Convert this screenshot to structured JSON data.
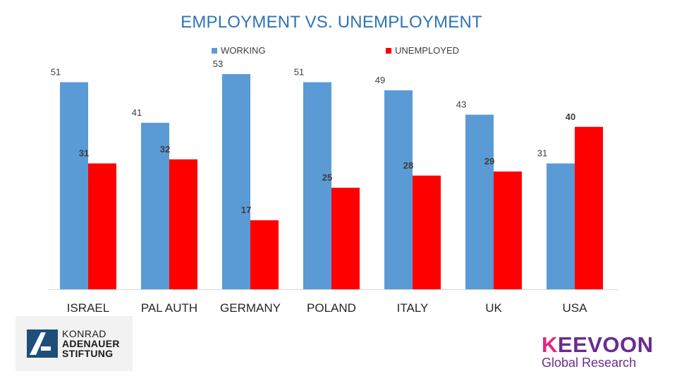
{
  "chart_data": {
    "type": "bar",
    "title": "EMPLOYMENT VS. UNEMPLOYMENT",
    "categories": [
      "ISRAEL",
      "PAL AUTH",
      "GERMANY",
      "POLAND",
      "ITALY",
      "UK",
      "USA"
    ],
    "series": [
      {
        "name": "WORKING",
        "values": [
          51,
          41,
          53,
          51,
          49,
          43,
          31
        ],
        "color": "#5b9bd5"
      },
      {
        "name": "UNEMPLOYED",
        "values": [
          31,
          32,
          17,
          25,
          28,
          29,
          40
        ],
        "color": "#ff0000"
      }
    ],
    "xlabel": "",
    "ylabel": "",
    "ylim": [
      0,
      53
    ],
    "grid": false,
    "legend": "top-center"
  },
  "logos": {
    "kas": {
      "line1": "KONRAD",
      "line2": "ADENAUER",
      "line3": "STIFTUNG",
      "color": "#1f4e79"
    },
    "keevoon": {
      "name_first": "K",
      "name_rest": "EEVOON",
      "subtitle": "Global Research",
      "color": "#6a2c8f",
      "accent": "#e3277f"
    }
  }
}
